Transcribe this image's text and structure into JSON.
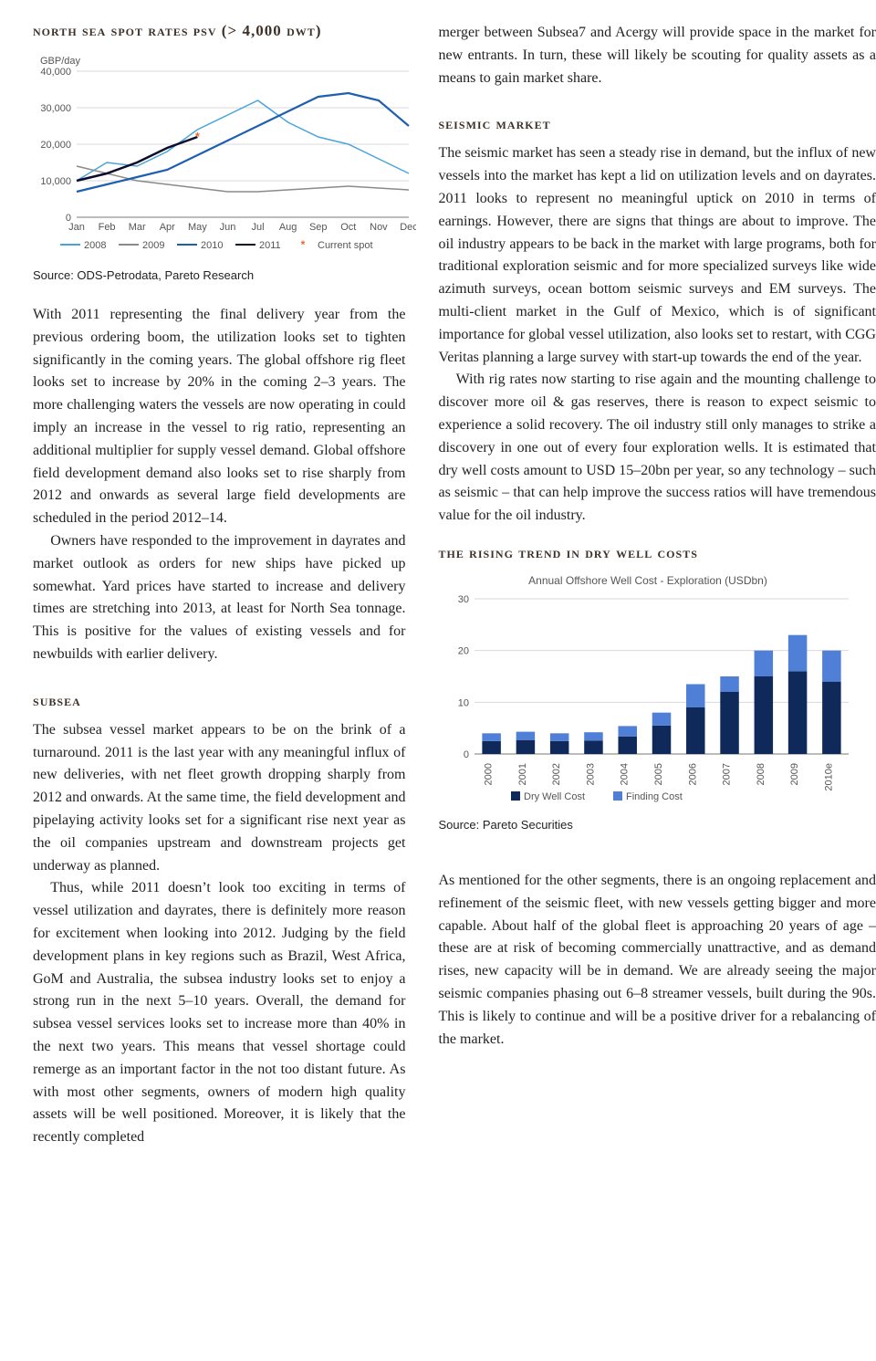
{
  "left": {
    "chart1": {
      "title": "north sea spot rates psv (> 4,000 dwt)",
      "y_label": "GBP/day",
      "y_ticks": [
        0,
        10000,
        20000,
        30000,
        40000
      ],
      "y_tick_labels": [
        "0",
        "10,000",
        "20,000",
        "30,000",
        "40,000"
      ],
      "ylim": [
        0,
        40000
      ],
      "x_labels": [
        "Jan",
        "Feb",
        "Mar",
        "Apr",
        "May",
        "Jun",
        "Jul",
        "Aug",
        "Sep",
        "Oct",
        "Nov",
        "Dec"
      ],
      "series": [
        {
          "name": "2008",
          "color": "#4aa4d9",
          "width": 1.5,
          "values": [
            10000,
            15000,
            14000,
            18000,
            24000,
            28000,
            32000,
            26000,
            22000,
            20000,
            16000,
            12000
          ]
        },
        {
          "name": "2009",
          "color": "#8a8a8a",
          "width": 1.5,
          "values": [
            14000,
            12000,
            10000,
            9000,
            8000,
            7000,
            7000,
            7500,
            8000,
            8500,
            8000,
            7500
          ]
        },
        {
          "name": "2010",
          "color": "#1f5fb0",
          "width": 2.2,
          "values": [
            7000,
            9000,
            11000,
            13000,
            17000,
            21000,
            25000,
            29000,
            33000,
            34000,
            32000,
            25000
          ]
        },
        {
          "name": "2011",
          "color": "#0b0b2a",
          "width": 2.5,
          "values": [
            10000,
            12000,
            15000,
            19000,
            22000,
            null,
            null,
            null,
            null,
            null,
            null,
            null
          ]
        }
      ],
      "current_spot": {
        "label": "Current spot",
        "color": "#e36c2c",
        "month_index": 4,
        "value": 22000
      },
      "grid_color": "#d9d9d9",
      "axis_color": "#7a7a7a",
      "tick_font_size": 11,
      "bg": "#ffffff",
      "source": "Source: ODS-Petrodata, Pareto Research"
    },
    "p1": "With 2011 representing the final delivery year from the previous ordering boom, the utilization looks set to tighten significantly in the coming years. The global off­shore rig fleet looks set to increase by 20% in the coming 2–3 years. The more challenging waters the vessels are now operating in could imply an increase in the vessel to rig ratio, representing an additional multiplier for supply ves­sel demand. Global offshore field development demand also looks set to rise sharply from 2012 and onwards as several large field developments are scheduled in the period 2012–14.",
    "p2": "Owners have responded to the improvement in dayrates and market outlook as orders for new ships have picked up somewhat. Yard prices have started to increase and deliv­ery times are stretching into 2013, at least for North Sea tonnage. This is positive for the values of existing vessels and for newbuilds with earlier delivery.",
    "subsea_heading": "subsea",
    "subsea_p1": "The subsea vessel market appears to be on the brink of a turnaround. 2011 is the last year with any meaningful influx of new deliveries, with net fleet growth dropping sharply from 2012 and onwards. At the same time, the field development and pipelaying activity looks set for a significant rise next year as the oil companies upstream and downstream projects get underway as planned.",
    "subsea_p2": "Thus, while 2011 doesn’t look too exciting in terms of vessel utilization and dayrates, there is definitely more rea­son for excitement when looking into 2012. Judging by the field development plans in key regions such as Brazil, West Africa, GoM and Australia, the subsea industry looks set to enjoy a strong run in the next 5–10 years. Overall, the demand for subsea vessel services looks set to increase more than 40% in the next two years. This means that vessel shortage could remerge as an important factor in the not too distant future. As with most other segments, owners of modern high quality assets will be well posi­tioned. Moreover, it is likely that the recently completed"
  },
  "right": {
    "p_top": "merger between Subsea7 and Acergy will provide space in the market for new entrants. In turn, these will likely be scouting for quality assets as a means to gain market share.",
    "seismic_heading": "seismic market",
    "seismic_p1": "The seismic market has seen a steady rise in demand, but the influx of new vessels into the market has kept a lid on utilization levels and on dayrates. 2011 looks to represent no meaningful uptick on 2010 in terms of earnings. How­ever, there are signs that things are about to improve. The oil industry appears to be back in the market with large programs, both for traditional exploration seismic and for more specialized surveys like wide azimuth surveys, ocean bottom seismic surveys and EM surveys. The multi-client market in the Gulf of Mexico, which is of significant importance for global vessel utilization, also looks set to restart, with CGG Veritas planning a large survey with start-up towards the end of the year.",
    "seismic_p2": "With rig rates now starting to rise again and the mount­ing challenge to discover more oil & gas reserves, there is reason to expect seismic to experience a solid recovery. The oil industry still only manages to strike a discovery in one out of every four exploration wells. It is estimated that dry well costs amount to USD 15–20bn per year, so any tech­nology – such as seismic – that can help improve the success ratios will have tremendous value for the oil industry.",
    "chart2": {
      "heading": "the rising trend in dry well costs",
      "title": "Annual Offshore Well Cost - Exploration (USDbn)",
      "y_ticks": [
        0,
        10,
        20,
        30
      ],
      "ylim": [
        0,
        30
      ],
      "x_labels": [
        "2000",
        "2001",
        "2002",
        "2003",
        "2004",
        "2005",
        "2006",
        "2007",
        "2008",
        "2009",
        "2010e"
      ],
      "series": [
        {
          "name": "Dry Well Cost",
          "color": "#0f2a5a",
          "values": [
            2.5,
            2.7,
            2.5,
            2.6,
            3.4,
            5.5,
            9.0,
            12.0,
            15.0,
            16.0,
            14.0
          ]
        },
        {
          "name": "Finding Cost",
          "color": "#4f7fd6",
          "values": [
            1.5,
            1.6,
            1.5,
            1.6,
            2.0,
            2.5,
            4.5,
            3.0,
            5.0,
            7.0,
            6.0
          ]
        }
      ],
      "grid_color": "#d9d9d9",
      "axis_color": "#7a7a7a",
      "bar_width": 0.55,
      "tick_font_size": 11,
      "bg": "#ffffff",
      "source": "Source: Pareto Securities"
    },
    "p_bottom": "As mentioned for the other segments, there is an ongo­ing replacement and refinement of the seismic fleet, with new vessels getting bigger and more capable. About half of the global fleet is approaching 20 years of age – these are at risk of becoming commercially unattractive, and as demand rises, new capacity will be in demand. We are already seeing the major seismic companies phasing out 6–8 streamer vessels, built during the 90s. This is likely to continue and will be a positive driver for a rebalancing of the market."
  }
}
